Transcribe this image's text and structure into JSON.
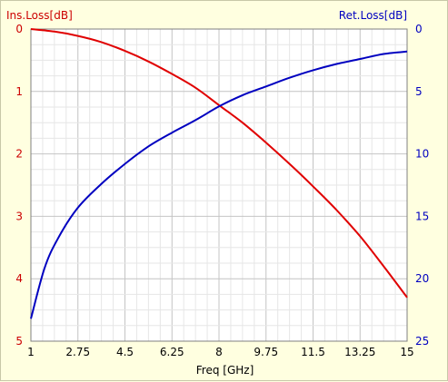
{
  "chart_data": {
    "type": "line",
    "xlabel": "Freq [GHz]",
    "ylabel_left": "Ins.Loss[dB]",
    "ylabel_right": "Ret.Loss[dB]",
    "xlim": [
      1,
      15
    ],
    "ylim_left": [
      0,
      5
    ],
    "ylim_right": [
      0,
      25
    ],
    "y_inverted": true,
    "grid": true,
    "x_ticks": [
      "1",
      "2.75",
      "4.5",
      "6.25",
      "8",
      "9.75",
      "11.5",
      "13.25",
      "15"
    ],
    "y_left_ticks": [
      "0",
      "1",
      "2",
      "3",
      "4",
      "5"
    ],
    "y_right_ticks": [
      "0",
      "5",
      "10",
      "15",
      "20",
      "25"
    ],
    "series": [
      {
        "axis": "left",
        "color": "#e00000",
        "x": [
          1,
          1.875,
          2.75,
          3.625,
          4.5,
          5.375,
          6.25,
          7.125,
          8,
          8.875,
          9.75,
          10.625,
          11.5,
          12.375,
          13.25,
          14.125,
          15
        ],
        "y": [
          0.0,
          0.04,
          0.11,
          0.21,
          0.35,
          0.52,
          0.72,
          0.94,
          1.22,
          1.5,
          1.82,
          2.16,
          2.52,
          2.9,
          3.32,
          3.8,
          4.3
        ]
      },
      {
        "axis": "right",
        "color": "#0000c0",
        "x": [
          1,
          1.5,
          2,
          2.75,
          3.625,
          4.5,
          5.375,
          6.25,
          7.125,
          8,
          8.875,
          9.75,
          10.625,
          11.5,
          12.375,
          13.25,
          14.125,
          15
        ],
        "y": [
          23.2,
          19.2,
          16.8,
          14.3,
          12.4,
          10.8,
          9.4,
          8.3,
          7.3,
          6.2,
          5.3,
          4.6,
          3.9,
          3.3,
          2.8,
          2.4,
          2.0,
          1.8
        ]
      }
    ]
  }
}
